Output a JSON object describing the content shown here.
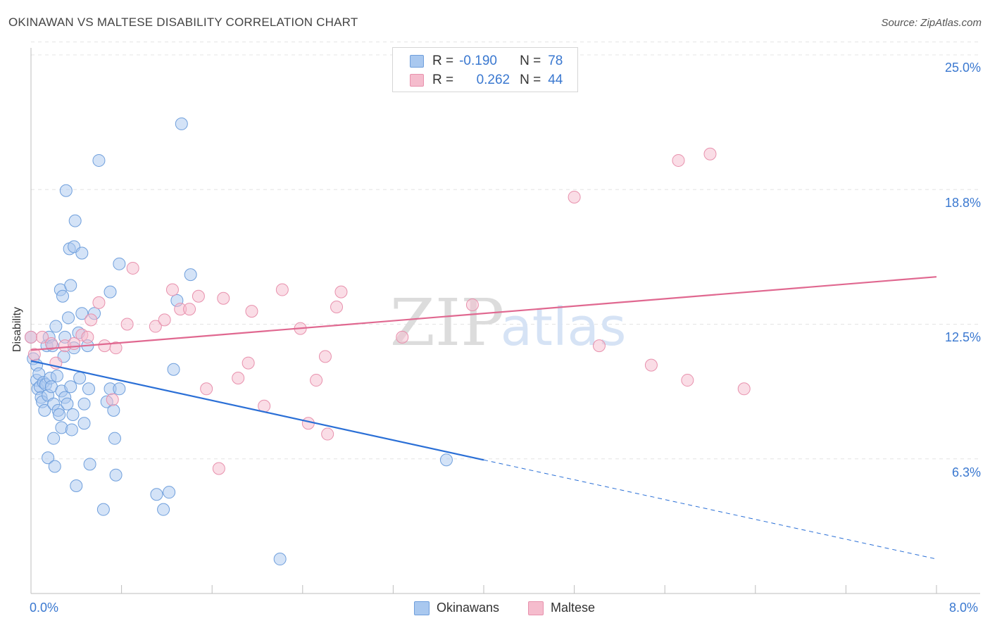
{
  "title": "OKINAWAN VS MALTESE DISABILITY CORRELATION CHART",
  "source": "Source: ZipAtlas.com",
  "watermark": {
    "zip": "ZIP",
    "atlas": "atlas"
  },
  "legend": {
    "rows": [
      {
        "r_label": "R =",
        "r_value": "-0.190",
        "n_label": "N =",
        "n_value": "78"
      },
      {
        "r_label": "R =",
        "r_value": "0.262",
        "n_label": "N =",
        "n_value": "44"
      }
    ],
    "bottom": [
      "Okinawans",
      "Maltese"
    ]
  },
  "colors": {
    "blue_fill": "#a9c8ef",
    "blue_stroke": "#6f9fdc",
    "blue_line": "#2a6fd6",
    "pink_fill": "#f5bccd",
    "pink_stroke": "#e891ad",
    "pink_line": "#e06890",
    "tick_text": "#3a78d0"
  },
  "axes": {
    "ylabel": "Disability",
    "x_ticks": [
      "0.0%",
      "8.0%"
    ],
    "y_ticks": [
      "25.0%",
      "18.8%",
      "12.5%",
      "6.3%"
    ]
  },
  "chart_data": {
    "type": "scatter",
    "title": "OKINAWAN VS MALTESE DISABILITY CORRELATION CHART",
    "xlabel": "",
    "ylabel": "Disability",
    "xlim": [
      0,
      8
    ],
    "ylim": [
      0,
      25
    ],
    "grid": true,
    "legend_position": "top-center",
    "series": [
      {
        "name": "Okinawans",
        "color": "#a9c8ef",
        "trend": {
          "x": [
            0,
            4.0,
            8.0
          ],
          "y": [
            10.8,
            6.2,
            1.6
          ],
          "dashed_from_x": 4.0
        },
        "points": [
          [
            0.0,
            11.9
          ],
          [
            0.02,
            10.9
          ],
          [
            0.05,
            10.6
          ],
          [
            0.05,
            9.9
          ],
          [
            0.06,
            9.5
          ],
          [
            0.07,
            10.2
          ],
          [
            0.08,
            9.6
          ],
          [
            0.09,
            9.1
          ],
          [
            0.1,
            8.9
          ],
          [
            0.11,
            9.8
          ],
          [
            0.12,
            8.5
          ],
          [
            0.13,
            9.7
          ],
          [
            0.14,
            11.5
          ],
          [
            0.15,
            9.2
          ],
          [
            0.15,
            6.3
          ],
          [
            0.16,
            11.9
          ],
          [
            0.17,
            10.0
          ],
          [
            0.18,
            9.6
          ],
          [
            0.19,
            11.5
          ],
          [
            0.2,
            8.8
          ],
          [
            0.2,
            7.2
          ],
          [
            0.21,
            5.9
          ],
          [
            0.22,
            12.4
          ],
          [
            0.23,
            10.1
          ],
          [
            0.24,
            8.5
          ],
          [
            0.25,
            8.3
          ],
          [
            0.26,
            14.1
          ],
          [
            0.27,
            7.7
          ],
          [
            0.27,
            9.4
          ],
          [
            0.28,
            13.8
          ],
          [
            0.29,
            11.0
          ],
          [
            0.3,
            9.1
          ],
          [
            0.3,
            11.9
          ],
          [
            0.31,
            18.7
          ],
          [
            0.32,
            8.8
          ],
          [
            0.33,
            12.8
          ],
          [
            0.34,
            16.0
          ],
          [
            0.35,
            14.3
          ],
          [
            0.35,
            9.6
          ],
          [
            0.36,
            7.6
          ],
          [
            0.37,
            8.3
          ],
          [
            0.38,
            16.1
          ],
          [
            0.38,
            11.4
          ],
          [
            0.39,
            17.3
          ],
          [
            0.4,
            5.0
          ],
          [
            0.42,
            12.1
          ],
          [
            0.43,
            10.0
          ],
          [
            0.45,
            15.8
          ],
          [
            0.45,
            13.0
          ],
          [
            0.47,
            8.8
          ],
          [
            0.47,
            7.9
          ],
          [
            0.5,
            11.5
          ],
          [
            0.51,
            9.5
          ],
          [
            0.52,
            6.0
          ],
          [
            0.56,
            13.0
          ],
          [
            0.6,
            20.1
          ],
          [
            0.64,
            3.9
          ],
          [
            0.67,
            8.9
          ],
          [
            0.7,
            9.5
          ],
          [
            0.7,
            14.0
          ],
          [
            0.73,
            8.5
          ],
          [
            0.74,
            7.2
          ],
          [
            0.75,
            5.5
          ],
          [
            0.78,
            9.5
          ],
          [
            0.78,
            15.3
          ],
          [
            1.11,
            4.6
          ],
          [
            1.17,
            3.9
          ],
          [
            1.22,
            4.7
          ],
          [
            1.26,
            10.4
          ],
          [
            1.29,
            13.6
          ],
          [
            1.33,
            21.8
          ],
          [
            1.41,
            14.8
          ],
          [
            2.2,
            1.6
          ],
          [
            3.67,
            6.2
          ]
        ]
      },
      {
        "name": "Maltese",
        "color": "#f5bccd",
        "trend": {
          "x": [
            0,
            8.0
          ],
          "y": [
            11.3,
            14.7
          ]
        },
        "points": [
          [
            0.0,
            11.9
          ],
          [
            0.03,
            11.1
          ],
          [
            0.1,
            11.9
          ],
          [
            0.18,
            11.6
          ],
          [
            0.22,
            10.7
          ],
          [
            0.3,
            11.5
          ],
          [
            0.38,
            11.6
          ],
          [
            0.45,
            12.0
          ],
          [
            0.5,
            11.9
          ],
          [
            0.53,
            12.7
          ],
          [
            0.6,
            13.5
          ],
          [
            0.65,
            11.5
          ],
          [
            0.72,
            9.0
          ],
          [
            0.75,
            11.4
          ],
          [
            0.85,
            12.5
          ],
          [
            0.9,
            15.1
          ],
          [
            1.1,
            12.4
          ],
          [
            1.18,
            12.7
          ],
          [
            1.25,
            14.1
          ],
          [
            1.32,
            13.2
          ],
          [
            1.4,
            13.2
          ],
          [
            1.48,
            13.8
          ],
          [
            1.55,
            9.5
          ],
          [
            1.66,
            5.8
          ],
          [
            1.7,
            13.7
          ],
          [
            1.83,
            10.0
          ],
          [
            1.92,
            10.7
          ],
          [
            1.95,
            13.1
          ],
          [
            2.06,
            8.7
          ],
          [
            2.22,
            14.1
          ],
          [
            2.38,
            12.3
          ],
          [
            2.45,
            7.9
          ],
          [
            2.52,
            9.9
          ],
          [
            2.6,
            11.0
          ],
          [
            2.62,
            7.4
          ],
          [
            2.7,
            13.3
          ],
          [
            2.74,
            14.0
          ],
          [
            3.28,
            11.9
          ],
          [
            3.9,
            13.4
          ],
          [
            4.8,
            18.4
          ],
          [
            5.02,
            11.5
          ],
          [
            5.48,
            10.6
          ],
          [
            5.72,
            20.1
          ],
          [
            5.8,
            9.9
          ],
          [
            6.0,
            20.4
          ],
          [
            6.3,
            9.5
          ]
        ]
      }
    ]
  }
}
